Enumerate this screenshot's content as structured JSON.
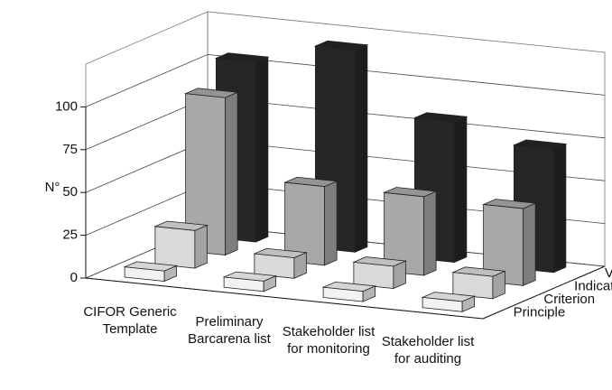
{
  "chart_data": {
    "type": "bar3d",
    "ylabel": "N°",
    "categories": [
      "CIFOR Generic Template",
      "Preliminary Barcarena list",
      "Stakeholder list for monitoring",
      "Stakeholder list for auditing"
    ],
    "series": [
      {
        "name": "Principle",
        "color": "#f2f2f2",
        "values": [
          6,
          6,
          6,
          6
        ]
      },
      {
        "name": "Criterion",
        "color": "#d9d9d9",
        "values": [
          22,
          12,
          13,
          13
        ]
      },
      {
        "name": "Indicator",
        "color": "#a8a8a8",
        "values": [
          92,
          46,
          46,
          45
        ]
      },
      {
        "name": "Verifier",
        "color": "#262626",
        "values": [
          105,
          118,
          82,
          72
        ]
      }
    ],
    "ylim": [
      0,
      125
    ],
    "yticks": [
      0,
      25,
      50,
      75,
      100
    ],
    "grid": true
  }
}
